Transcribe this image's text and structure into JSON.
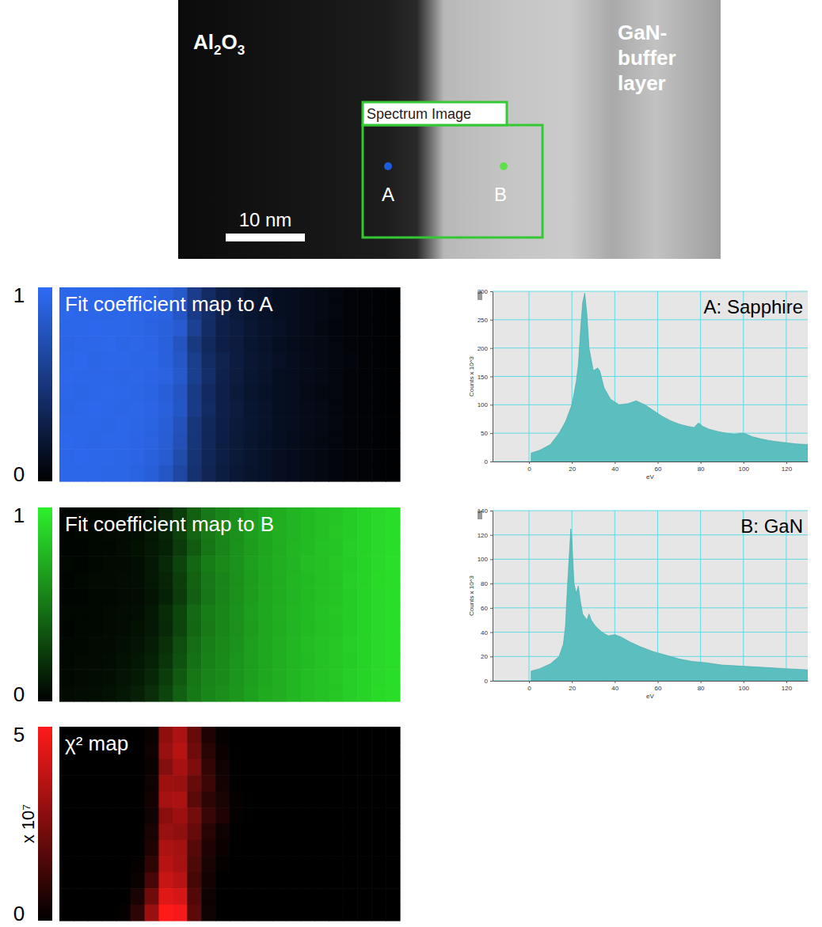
{
  "micrograph": {
    "labels": {
      "substrate": "Al2O3",
      "layer": [
        "GaN-",
        "buffer",
        "layer"
      ],
      "box": "Spectrum Image",
      "points": [
        "A",
        "B"
      ],
      "scale_bar": "10 nm"
    }
  },
  "chart_data": [
    {
      "type": "heatmap",
      "title": "Fit coefficient map to A",
      "color": "#2e6cf6",
      "colorbar": {
        "range": [
          0,
          1
        ],
        "ticks": [
          0,
          1
        ]
      },
      "cells": [
        [
          0.95,
          0.96,
          0.95,
          0.95,
          0.94,
          0.95,
          0.93,
          0.9,
          0.82,
          0.56,
          0.4,
          0.3,
          0.25,
          0.2,
          0.17,
          0.14,
          0.12,
          0.1,
          0.08,
          0.06,
          0.04,
          0.03,
          0.02,
          0.01
        ],
        [
          0.96,
          0.95,
          0.95,
          0.94,
          0.95,
          0.94,
          0.93,
          0.91,
          0.8,
          0.55,
          0.42,
          0.31,
          0.24,
          0.2,
          0.16,
          0.14,
          0.12,
          0.1,
          0.08,
          0.06,
          0.04,
          0.03,
          0.02,
          0.01
        ],
        [
          0.95,
          0.95,
          0.96,
          0.95,
          0.95,
          0.94,
          0.92,
          0.9,
          0.84,
          0.6,
          0.41,
          0.3,
          0.26,
          0.21,
          0.17,
          0.15,
          0.12,
          0.1,
          0.07,
          0.05,
          0.04,
          0.03,
          0.02,
          0.01
        ],
        [
          0.94,
          0.95,
          0.95,
          0.96,
          0.94,
          0.95,
          0.93,
          0.89,
          0.78,
          0.52,
          0.38,
          0.29,
          0.25,
          0.2,
          0.17,
          0.14,
          0.11,
          0.09,
          0.08,
          0.06,
          0.04,
          0.03,
          0.02,
          0.01
        ],
        [
          0.95,
          0.96,
          0.94,
          0.95,
          0.95,
          0.94,
          0.94,
          0.9,
          0.81,
          0.57,
          0.4,
          0.32,
          0.26,
          0.21,
          0.18,
          0.15,
          0.12,
          0.1,
          0.08,
          0.06,
          0.05,
          0.03,
          0.02,
          0.01
        ],
        [
          0.96,
          0.95,
          0.95,
          0.95,
          0.94,
          0.95,
          0.93,
          0.91,
          0.83,
          0.58,
          0.43,
          0.31,
          0.25,
          0.2,
          0.17,
          0.14,
          0.12,
          0.1,
          0.08,
          0.06,
          0.04,
          0.03,
          0.02,
          0.01
        ],
        [
          0.95,
          0.94,
          0.95,
          0.96,
          0.95,
          0.94,
          0.92,
          0.88,
          0.79,
          0.54,
          0.39,
          0.3,
          0.24,
          0.19,
          0.16,
          0.14,
          0.12,
          0.09,
          0.07,
          0.06,
          0.04,
          0.03,
          0.02,
          0.01
        ],
        [
          0.94,
          0.95,
          0.96,
          0.95,
          0.94,
          0.95,
          0.93,
          0.9,
          0.8,
          0.55,
          0.4,
          0.3,
          0.25,
          0.2,
          0.17,
          0.14,
          0.12,
          0.1,
          0.08,
          0.06,
          0.04,
          0.03,
          0.02,
          0.01
        ],
        [
          0.95,
          0.95,
          0.95,
          0.94,
          0.95,
          0.94,
          0.92,
          0.87,
          0.76,
          0.5,
          0.37,
          0.29,
          0.24,
          0.2,
          0.17,
          0.14,
          0.12,
          0.1,
          0.08,
          0.06,
          0.04,
          0.03,
          0.02,
          0.01
        ],
        [
          0.96,
          0.95,
          0.94,
          0.95,
          0.95,
          0.93,
          0.91,
          0.86,
          0.74,
          0.49,
          0.36,
          0.28,
          0.23,
          0.19,
          0.16,
          0.14,
          0.11,
          0.09,
          0.07,
          0.06,
          0.04,
          0.03,
          0.02,
          0.01
        ],
        [
          0.95,
          0.96,
          0.95,
          0.95,
          0.94,
          0.93,
          0.9,
          0.84,
          0.7,
          0.47,
          0.35,
          0.28,
          0.23,
          0.19,
          0.16,
          0.13,
          0.11,
          0.09,
          0.07,
          0.05,
          0.04,
          0.03,
          0.02,
          0.01
        ],
        [
          0.95,
          0.95,
          0.95,
          0.94,
          0.94,
          0.92,
          0.88,
          0.8,
          0.66,
          0.45,
          0.34,
          0.27,
          0.22,
          0.18,
          0.16,
          0.13,
          0.11,
          0.09,
          0.07,
          0.05,
          0.04,
          0.03,
          0.02,
          0.01
        ]
      ]
    },
    {
      "type": "heatmap",
      "title": "Fit coefficient map to B",
      "color": "#2df02d",
      "colorbar": {
        "range": [
          0,
          1
        ],
        "ticks": [
          0,
          1
        ]
      },
      "cells": [
        [
          0.02,
          0.02,
          0.03,
          0.03,
          0.04,
          0.05,
          0.08,
          0.15,
          0.25,
          0.4,
          0.5,
          0.55,
          0.6,
          0.65,
          0.7,
          0.72,
          0.75,
          0.78,
          0.8,
          0.82,
          0.85,
          0.88,
          0.9,
          0.92
        ],
        [
          0.02,
          0.03,
          0.03,
          0.04,
          0.05,
          0.06,
          0.09,
          0.16,
          0.27,
          0.42,
          0.51,
          0.56,
          0.6,
          0.66,
          0.7,
          0.73,
          0.75,
          0.78,
          0.8,
          0.83,
          0.85,
          0.88,
          0.9,
          0.92
        ],
        [
          0.02,
          0.02,
          0.03,
          0.03,
          0.05,
          0.07,
          0.1,
          0.14,
          0.24,
          0.38,
          0.49,
          0.55,
          0.61,
          0.65,
          0.69,
          0.72,
          0.76,
          0.78,
          0.81,
          0.82,
          0.86,
          0.88,
          0.9,
          0.92
        ],
        [
          0.03,
          0.02,
          0.03,
          0.04,
          0.04,
          0.06,
          0.1,
          0.17,
          0.28,
          0.43,
          0.52,
          0.57,
          0.61,
          0.66,
          0.7,
          0.73,
          0.75,
          0.79,
          0.8,
          0.83,
          0.85,
          0.88,
          0.9,
          0.93
        ],
        [
          0.02,
          0.03,
          0.04,
          0.04,
          0.05,
          0.06,
          0.09,
          0.15,
          0.26,
          0.41,
          0.5,
          0.55,
          0.6,
          0.65,
          0.7,
          0.72,
          0.76,
          0.78,
          0.8,
          0.82,
          0.86,
          0.88,
          0.91,
          0.92
        ],
        [
          0.02,
          0.02,
          0.03,
          0.03,
          0.04,
          0.05,
          0.08,
          0.14,
          0.24,
          0.39,
          0.49,
          0.55,
          0.6,
          0.65,
          0.7,
          0.72,
          0.75,
          0.78,
          0.8,
          0.82,
          0.85,
          0.88,
          0.9,
          0.92
        ],
        [
          0.03,
          0.03,
          0.03,
          0.04,
          0.05,
          0.06,
          0.1,
          0.18,
          0.29,
          0.44,
          0.52,
          0.56,
          0.61,
          0.66,
          0.7,
          0.73,
          0.76,
          0.78,
          0.81,
          0.83,
          0.85,
          0.88,
          0.9,
          0.92
        ],
        [
          0.02,
          0.03,
          0.03,
          0.04,
          0.05,
          0.07,
          0.1,
          0.17,
          0.28,
          0.43,
          0.51,
          0.56,
          0.6,
          0.65,
          0.7,
          0.72,
          0.75,
          0.78,
          0.8,
          0.82,
          0.85,
          0.88,
          0.9,
          0.92
        ],
        [
          0.03,
          0.03,
          0.04,
          0.04,
          0.06,
          0.08,
          0.12,
          0.2,
          0.32,
          0.46,
          0.53,
          0.57,
          0.61,
          0.66,
          0.7,
          0.73,
          0.76,
          0.79,
          0.81,
          0.83,
          0.86,
          0.88,
          0.9,
          0.92
        ],
        [
          0.03,
          0.04,
          0.04,
          0.05,
          0.07,
          0.09,
          0.14,
          0.22,
          0.34,
          0.47,
          0.54,
          0.58,
          0.62,
          0.66,
          0.7,
          0.73,
          0.76,
          0.78,
          0.81,
          0.83,
          0.85,
          0.88,
          0.9,
          0.92
        ],
        [
          0.03,
          0.04,
          0.05,
          0.06,
          0.08,
          0.11,
          0.16,
          0.25,
          0.37,
          0.49,
          0.55,
          0.58,
          0.62,
          0.66,
          0.7,
          0.73,
          0.76,
          0.79,
          0.81,
          0.83,
          0.86,
          0.88,
          0.9,
          0.92
        ],
        [
          0.04,
          0.05,
          0.06,
          0.07,
          0.09,
          0.13,
          0.19,
          0.28,
          0.4,
          0.5,
          0.56,
          0.59,
          0.63,
          0.67,
          0.71,
          0.73,
          0.76,
          0.79,
          0.81,
          0.83,
          0.86,
          0.88,
          0.91,
          0.92
        ]
      ]
    },
    {
      "type": "heatmap",
      "title": "χ² map",
      "color": "#ff1a1a",
      "colorbar": {
        "range": [
          0,
          5
        ],
        "ticks": [
          0,
          5
        ],
        "label": "x 10⁷"
      },
      "cells": [
        [
          0,
          0,
          0,
          0,
          0,
          0,
          0.2,
          2.8,
          3.4,
          2.0,
          0.6,
          0.1,
          0,
          0,
          0,
          0,
          0,
          0,
          0,
          0,
          0,
          0,
          0,
          0
        ],
        [
          0,
          0,
          0,
          0,
          0,
          0,
          0.3,
          3.0,
          3.6,
          2.2,
          0.8,
          0.2,
          0,
          0,
          0,
          0,
          0,
          0,
          0,
          0,
          0,
          0,
          0,
          0
        ],
        [
          0,
          0,
          0,
          0,
          0,
          0,
          0.2,
          2.6,
          3.3,
          2.5,
          1.0,
          0.3,
          0,
          0,
          0,
          0,
          0,
          0,
          0,
          0,
          0,
          0,
          0,
          0
        ],
        [
          0,
          0,
          0,
          0,
          0,
          0,
          0.3,
          3.1,
          3.0,
          2.0,
          1.2,
          0.4,
          0,
          0,
          0,
          0,
          0,
          0,
          0,
          0,
          0,
          0,
          0,
          0
        ],
        [
          0,
          0,
          0,
          0,
          0,
          0,
          0.4,
          3.3,
          3.4,
          1.8,
          0.9,
          0.5,
          0.1,
          0,
          0,
          0,
          0,
          0,
          0,
          0,
          0,
          0,
          0,
          0
        ],
        [
          0,
          0,
          0,
          0,
          0,
          0,
          0.3,
          2.7,
          3.1,
          2.3,
          1.1,
          0.6,
          0.1,
          0,
          0,
          0,
          0,
          0,
          0,
          0,
          0,
          0,
          0,
          0
        ],
        [
          0,
          0,
          0,
          0,
          0,
          0,
          0.5,
          3.0,
          2.8,
          2.0,
          0.8,
          0.3,
          0,
          0,
          0,
          0,
          0,
          0,
          0,
          0,
          0,
          0,
          0,
          0
        ],
        [
          0,
          0,
          0,
          0,
          0,
          0,
          0.6,
          3.4,
          3.2,
          1.7,
          0.6,
          0.2,
          0,
          0,
          0,
          0,
          0,
          0,
          0,
          0,
          0,
          0,
          0,
          0
        ],
        [
          0,
          0,
          0,
          0,
          0,
          0.1,
          0.9,
          3.6,
          3.3,
          1.5,
          0.5,
          0.1,
          0,
          0,
          0,
          0,
          0,
          0,
          0,
          0,
          0,
          0,
          0,
          0
        ],
        [
          0,
          0,
          0,
          0,
          0,
          0.2,
          1.4,
          3.9,
          3.6,
          1.4,
          0.4,
          0,
          0,
          0,
          0,
          0,
          0,
          0,
          0,
          0,
          0,
          0,
          0,
          0
        ],
        [
          0,
          0,
          0,
          0,
          0,
          0.5,
          2.2,
          4.4,
          4.2,
          1.6,
          0.3,
          0,
          0,
          0,
          0,
          0,
          0,
          0,
          0,
          0,
          0,
          0,
          0,
          0
        ],
        [
          0,
          0,
          0,
          0,
          0.1,
          0.9,
          3.0,
          5.0,
          4.8,
          1.8,
          0.3,
          0,
          0,
          0,
          0,
          0,
          0,
          0,
          0,
          0,
          0,
          0,
          0,
          0
        ]
      ]
    },
    {
      "type": "area",
      "title": "A: Sapphire",
      "color": "#5bbfbf",
      "grid": true,
      "xlabel": "eV",
      "ylabel": "Counts x 10^3",
      "xlim": [
        -17,
        130
      ],
      "ylim": [
        0,
        300
      ],
      "xticks": [
        0,
        20,
        40,
        60,
        80,
        100,
        120
      ],
      "yticks": [
        0,
        50,
        100,
        150,
        200,
        250,
        300
      ],
      "x": [
        1,
        5,
        10,
        14,
        17,
        20,
        22,
        23,
        24,
        25,
        26,
        27,
        28,
        30,
        32,
        33,
        35,
        38,
        42,
        46,
        50,
        54,
        58,
        62,
        66,
        70,
        74,
        77,
        79,
        81,
        84,
        88,
        92,
        96,
        99,
        101,
        104,
        108,
        112,
        116,
        120,
        125,
        130
      ],
      "values": [
        15,
        20,
        30,
        50,
        70,
        100,
        140,
        170,
        230,
        280,
        297,
        260,
        200,
        160,
        165,
        160,
        130,
        110,
        100,
        102,
        107,
        100,
        90,
        80,
        72,
        66,
        62,
        60,
        68,
        62,
        57,
        53,
        50,
        48,
        50,
        49,
        44,
        40,
        37,
        35,
        33,
        31,
        30
      ]
    },
    {
      "type": "area",
      "title": "B: GaN",
      "color": "#5bbfbf",
      "grid": true,
      "xlabel": "eV",
      "ylabel": "Counts x 10^3",
      "xlim": [
        -17,
        130
      ],
      "ylim": [
        0,
        140
      ],
      "xticks": [
        0,
        20,
        40,
        60,
        80,
        100,
        120
      ],
      "yticks": [
        0,
        20,
        40,
        60,
        80,
        100,
        120,
        140
      ],
      "x": [
        1,
        5,
        10,
        14,
        16,
        17,
        18,
        19,
        19.5,
        20,
        21,
        22,
        23,
        24,
        25,
        27,
        28,
        29,
        31,
        34,
        37,
        40,
        43,
        47,
        52,
        58,
        64,
        70,
        76,
        82,
        90,
        100,
        110,
        120,
        130
      ],
      "values": [
        8,
        10,
        14,
        20,
        30,
        45,
        80,
        110,
        125,
        115,
        80,
        72,
        78,
        65,
        55,
        50,
        55,
        50,
        45,
        40,
        37,
        38,
        36,
        32,
        28,
        24,
        21,
        18,
        16,
        15,
        13,
        12,
        11,
        10,
        9
      ]
    }
  ]
}
